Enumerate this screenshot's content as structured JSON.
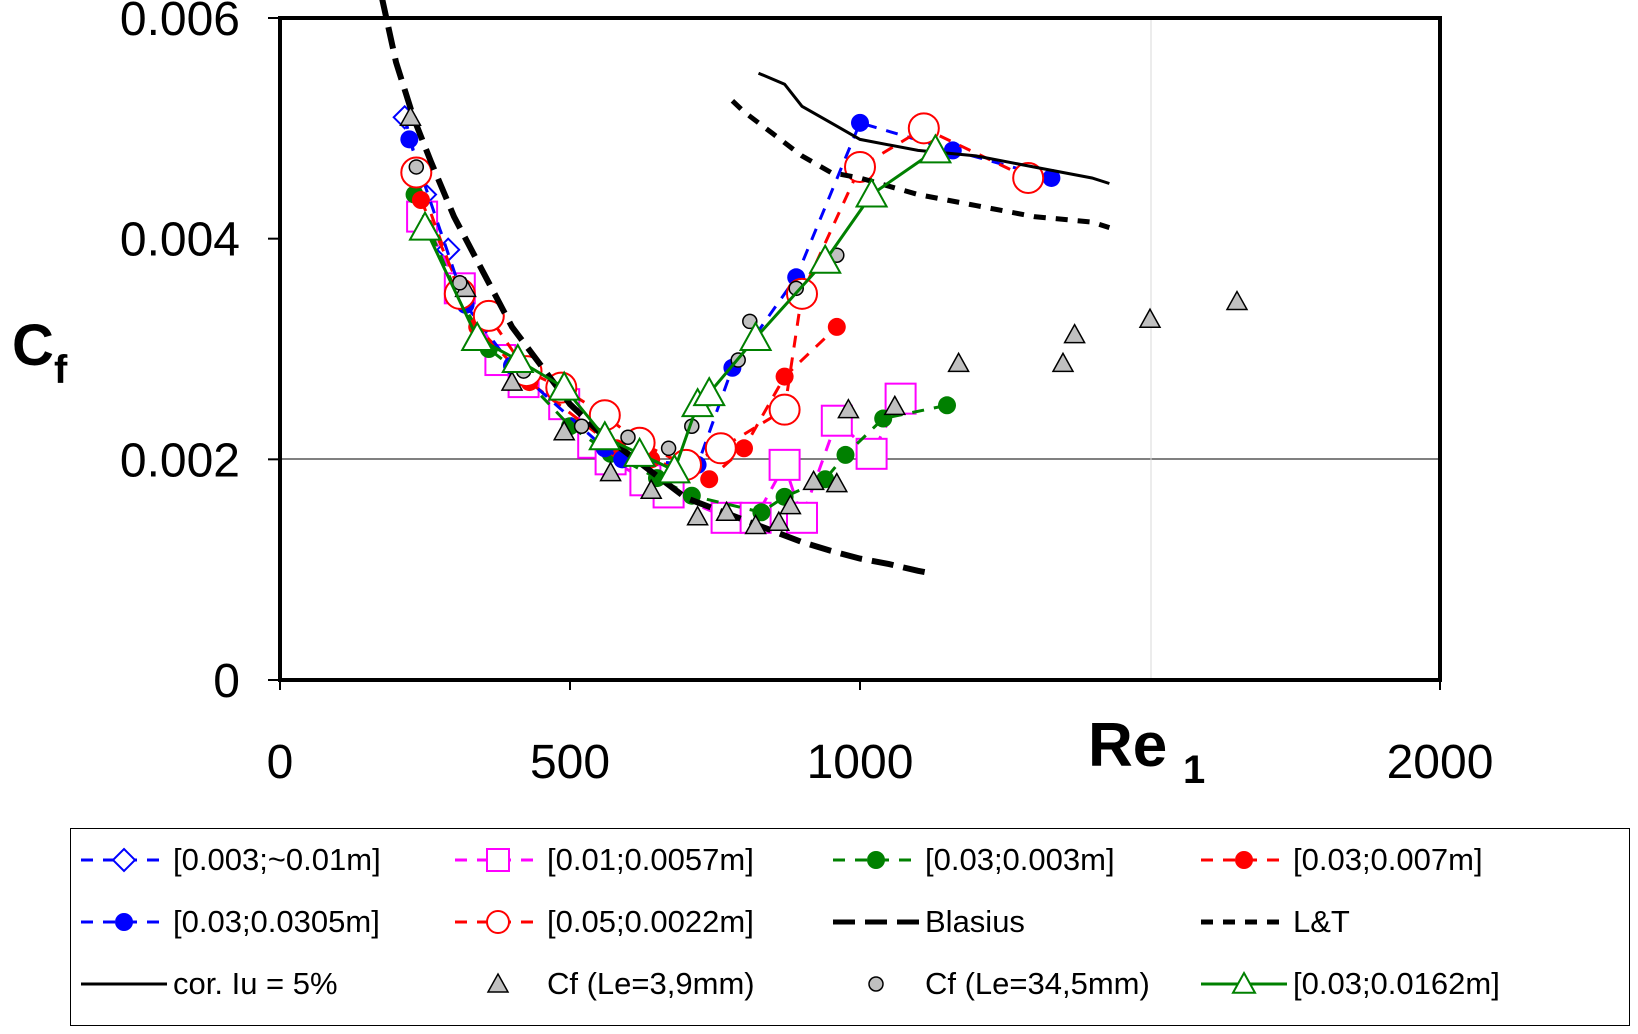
{
  "chart_data": {
    "type": "scatter",
    "xlabel": "Re",
    "xlabel_sub": "1",
    "ylabel": "C",
    "ylabel_sub": "f",
    "xlim": [
      0,
      2000
    ],
    "ylim": [
      0,
      0.006
    ],
    "x_ticks": [
      "0",
      "500",
      "1000",
      "2000"
    ],
    "x_tick_values": [
      0,
      500,
      1000,
      2000
    ],
    "y_ticks": [
      "0",
      "0.002",
      "0.004",
      "0.006"
    ],
    "y_tick_values": [
      0,
      0.002,
      0.004,
      0.006
    ],
    "grid": "major gridlines at x=1500, 2000 and y=0.002",
    "legend_position": "bottom",
    "series": [
      {
        "name": "[0.003;~0.01m]",
        "color": "#0000ff",
        "marker": "diamond-open",
        "line": "dashed",
        "x": [
          215,
          250,
          290
        ],
        "y": [
          0.0051,
          0.0044,
          0.0039
        ]
      },
      {
        "name": "[0.01;0.0057m]",
        "color": "#ff00ff",
        "marker": "square-open",
        "line": "dashed",
        "x": [
          245,
          310,
          380,
          420,
          490,
          540,
          570,
          630,
          670,
          770,
          820,
          870,
          900,
          960,
          1020,
          1070
        ],
        "y": [
          0.0042,
          0.00355,
          0.0029,
          0.0027,
          0.0025,
          0.00215,
          0.002,
          0.00181,
          0.0017,
          0.00147,
          0.00147,
          0.00195,
          0.00147,
          0.00235,
          0.00205,
          0.00255
        ]
      },
      {
        "name": "[0.03;0.003m]",
        "color": "#008000",
        "marker": "circle-filled",
        "line": "dashed",
        "x": [
          232,
          305,
          360,
          410,
          500,
          570,
          650,
          710,
          830,
          870,
          940,
          975,
          1040,
          1150
        ],
        "y": [
          0.0044,
          0.0035,
          0.003,
          0.0028,
          0.0023,
          0.00205,
          0.00183,
          0.00167,
          0.00152,
          0.00166,
          0.00182,
          0.00204,
          0.00237,
          0.00249
        ]
      },
      {
        "name": "[0.03;0.007m]",
        "color": "#ff0000",
        "marker": "circle-filled",
        "line": "dashed",
        "x": [
          243,
          340,
          430,
          580,
          640,
          740,
          800,
          870,
          960
        ],
        "y": [
          0.00435,
          0.0032,
          0.0027,
          0.0021,
          0.002,
          0.00182,
          0.0021,
          0.00275,
          0.0032
        ]
      },
      {
        "name": "[0.03;0.0305m]",
        "color": "#0000ff",
        "marker": "circle-filled",
        "line": "dashed",
        "x": [
          223,
          320,
          400,
          560,
          590,
          720,
          780,
          890,
          1000,
          1160,
          1330
        ],
        "y": [
          0.0049,
          0.0034,
          0.00285,
          0.0021,
          0.002,
          0.00195,
          0.00283,
          0.00365,
          0.00505,
          0.0048,
          0.00455
        ]
      },
      {
        "name": "[0.05;0.0022m]",
        "color": "#ff0000",
        "marker": "circle-open",
        "line": "dashed",
        "x": [
          235,
          310,
          360,
          425,
          485,
          560,
          620,
          700,
          760,
          870,
          900,
          1000,
          1110,
          1290
        ],
        "y": [
          0.0046,
          0.0035,
          0.0033,
          0.0028,
          0.00265,
          0.0024,
          0.00215,
          0.00195,
          0.0021,
          0.00245,
          0.0035,
          0.00465,
          0.005,
          0.00455
        ]
      },
      {
        "name": "Blasius",
        "color": "#000000",
        "marker": "none",
        "line": "long-dash",
        "x": [
          175,
          200,
          230,
          260,
          300,
          350,
          400,
          450,
          500,
          550,
          600,
          650,
          700,
          750,
          800,
          850,
          900,
          950,
          1000,
          1050,
          1100,
          1120
        ],
        "y": [
          0.0062,
          0.0056,
          0.0051,
          0.0047,
          0.0042,
          0.0037,
          0.0032,
          0.00285,
          0.0025,
          0.00225,
          0.00205,
          0.00185,
          0.00165,
          0.00155,
          0.00145,
          0.00135,
          0.00125,
          0.00117,
          0.0011,
          0.00105,
          0.00099,
          0.00097
        ]
      },
      {
        "name": "L&T",
        "color": "#000000",
        "marker": "none",
        "line": "dashed",
        "x": [
          780,
          800,
          850,
          900,
          950,
          1000,
          1100,
          1200,
          1300,
          1400,
          1430
        ],
        "y": [
          0.00525,
          0.00515,
          0.00495,
          0.00475,
          0.0046,
          0.00455,
          0.0044,
          0.0043,
          0.0042,
          0.00415,
          0.0041
        ]
      },
      {
        "name": "cor. Iu = 5%",
        "color": "#000000",
        "marker": "none",
        "line": "solid",
        "x": [
          825,
          870,
          900,
          950,
          1000,
          1100,
          1200,
          1300,
          1400,
          1430
        ],
        "y": [
          0.0055,
          0.0054,
          0.0052,
          0.00505,
          0.0049,
          0.0048,
          0.00475,
          0.00465,
          0.00455,
          0.0045
        ]
      },
      {
        "name": "Cf (Le=3,9mm)",
        "color": "#000000",
        "fill": "#c0c0c0",
        "marker": "triangle-filled",
        "line": "none",
        "x": [
          225,
          320,
          400,
          490,
          570,
          640,
          720,
          770,
          820,
          860,
          880,
          920,
          960,
          980,
          1060,
          1170,
          1350,
          1370,
          1500,
          1650
        ],
        "y": [
          0.0051,
          0.00355,
          0.0027,
          0.00225,
          0.00188,
          0.00172,
          0.00148,
          0.00152,
          0.0014,
          0.00143,
          0.00158,
          0.0018,
          0.00178,
          0.00245,
          0.00248,
          0.00287,
          0.00287,
          0.00313,
          0.00327,
          0.00343
        ]
      },
      {
        "name": "Cf (Le=34,5mm)",
        "color": "#000000",
        "fill": "#c0c0c0",
        "marker": "circle-filled",
        "line": "none",
        "x": [
          235,
          310,
          420,
          520,
          600,
          670,
          710,
          740,
          790,
          810,
          890,
          960
        ],
        "y": [
          0.00465,
          0.0036,
          0.0028,
          0.0023,
          0.0022,
          0.0021,
          0.0023,
          0.00255,
          0.0029,
          0.00325,
          0.00355,
          0.00385
        ]
      },
      {
        "name": "[0.03;0.0162m]",
        "color": "#008000",
        "marker": "triangle-open",
        "line": "solid",
        "x": [
          250,
          340,
          410,
          490,
          560,
          620,
          680,
          720,
          740,
          820,
          940,
          1020,
          1130
        ],
        "y": [
          0.0041,
          0.0031,
          0.0029,
          0.00265,
          0.0022,
          0.00205,
          0.0019,
          0.0025,
          0.0026,
          0.0031,
          0.0038,
          0.0044,
          0.0048
        ]
      }
    ]
  }
}
